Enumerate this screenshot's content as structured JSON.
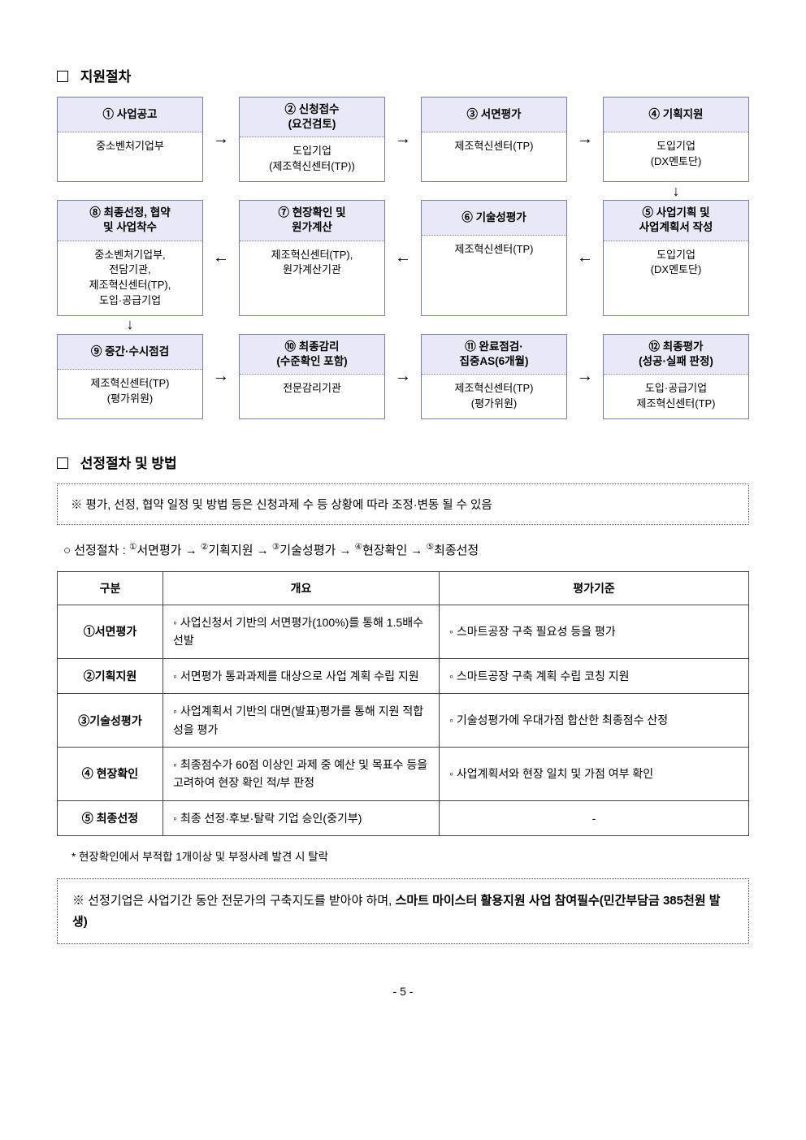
{
  "section1_title": "지원절차",
  "section2_title": "선정절차 및 방법",
  "flow": {
    "r1": [
      {
        "head": "① 사업공고",
        "sub": "",
        "body": "중소벤처기업부"
      },
      {
        "head": "② 신청접수",
        "sub": "(요건검토)",
        "body": "도입기업\n(제조혁신센터(TP))"
      },
      {
        "head": "③ 서면평가",
        "sub": "",
        "body": "제조혁신센터(TP)"
      },
      {
        "head": "④ 기획지원",
        "sub": "",
        "body": "도입기업\n(DX멘토단)"
      }
    ],
    "r2": [
      {
        "head": "⑧ 최종선정, 협약",
        "sub": "및 사업착수",
        "body": "중소벤처기업부,\n전담기관,\n제조혁신센터(TP),\n도입·공급기업"
      },
      {
        "head": "⑦ 현장확인 및",
        "sub": "원가계산",
        "body": "제조혁신센터(TP),\n원가계산기관"
      },
      {
        "head": "⑥ 기술성평가",
        "sub": "",
        "body": "제조혁신센터(TP)"
      },
      {
        "head": "⑤ 사업기획 및",
        "sub": "사업계획서 작성",
        "body": "도입기업\n(DX멘토단)"
      }
    ],
    "r3": [
      {
        "head": "⑨ 중간·수시점검",
        "sub": "",
        "body": "제조혁신센터(TP)\n(평가위원)"
      },
      {
        "head": "⑩ 최종감리",
        "sub": "(수준확인 포함)",
        "body": "전문감리기관"
      },
      {
        "head": "⑪ 완료점검·",
        "sub": "집중AS(6개월)",
        "body": "제조혁신센터(TP)\n(평가위원)"
      },
      {
        "head": "⑫ 최종평가",
        "sub": "(성공·실패 판정)",
        "body": "도입·공급기업\n제조혁신센터(TP)"
      }
    ],
    "arrows": {
      "right": "→",
      "left": "←",
      "down": "↓"
    }
  },
  "note1": "※ 평가, 선정, 협약 일정 및 방법 등은 신청과제 수 등 상황에 따라 조정·변동 될 수 있음",
  "selectionFlow_prefix": "○  선정절차 : ",
  "selectionFlow_items": [
    "서면평가",
    "기획지원",
    "기술성평가",
    "현장확인",
    "최종선정"
  ],
  "selectionFlow_nums": [
    "①",
    "②",
    "③",
    "④",
    "⑤"
  ],
  "critHeaders": [
    "구분",
    "개요",
    "평가기준"
  ],
  "critRows": [
    {
      "label": "①서면평가",
      "overview": "◦ 사업신청서 기반의 서면평가(100%)를 통해 1.5배수 선발",
      "criteria": "◦ 스마트공장 구축 필요성 등을 평가"
    },
    {
      "label": "②기획지원",
      "overview": "◦ 서면평가 통과과제를 대상으로 사업 계획 수립 지원",
      "criteria": "◦ 스마트공장 구축 계획 수립 코칭 지원"
    },
    {
      "label": "③기술성평가",
      "overview": "◦ 사업계획서 기반의 대면(발표)평가를 통해 지원 적합성을 평가",
      "criteria": "◦ 기술성평가에 우대가점 합산한 최종점수 산정"
    },
    {
      "label": "④ 현장확인",
      "overview": "◦ 최종점수가 60점 이상인 과제 중 예산 및 목표수 등을 고려하여 현장 확인 적/부 판정",
      "criteria": "◦ 사업계획서와 현장 일치 및 가점 여부 확인"
    },
    {
      "label": "⑤ 최종선정",
      "overview": "◦ 최종 선정·후보·탈락 기업 승인(중기부)",
      "criteria": "-"
    }
  ],
  "smallNote": "* 현장확인에서 부적합 1개이상 및 부정사례 발견 시 탈락",
  "bottomBox_prefix": "※ 선정기업은 사업기간 동안 전문가의 구축지도를 받아야 하며, ",
  "bottomBox_bold1": "스마트 마이스터 활용지원 사업 참여필수(민간부담금 385천원 발생)",
  "pageNum": "- 5 -"
}
